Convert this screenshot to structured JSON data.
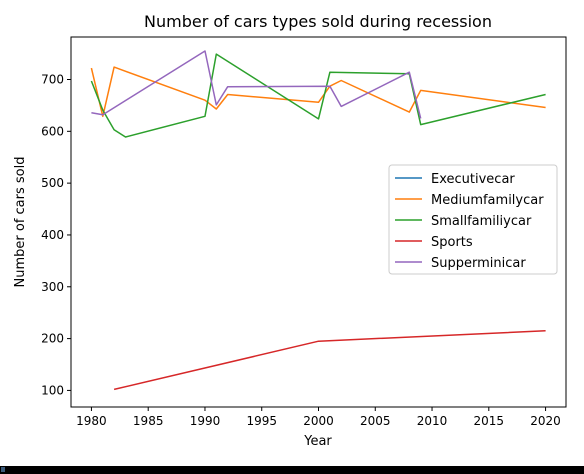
{
  "chart_data": {
    "type": "line",
    "title": "Number of cars types sold during recession",
    "xlabel": "Year",
    "ylabel": "Number of cars sold",
    "xlim": [
      1978.2,
      2021.8
    ],
    "ylim": [
      68,
      782
    ],
    "xticks": [
      1980,
      1985,
      1990,
      1995,
      2000,
      2005,
      2010,
      2015,
      2020
    ],
    "yticks": [
      100,
      200,
      300,
      400,
      500,
      600,
      700
    ],
    "grid": false,
    "legend_position": "center-right",
    "series": [
      {
        "name": "Executivecar",
        "color": "#1f77b4",
        "x": [],
        "y": []
      },
      {
        "name": "Mediumfamilycar",
        "color": "#ff7f0e",
        "x": [
          1980,
          1981,
          1982,
          1990,
          1991,
          1992,
          2000,
          2001,
          2002,
          2008,
          2009,
          2020
        ],
        "y": [
          722,
          629,
          724,
          660,
          643,
          671,
          656,
          687,
          698,
          637,
          679,
          646
        ]
      },
      {
        "name": "Smallfamiliycar",
        "color": "#2ca02c",
        "x": [
          1980,
          1981,
          1982,
          1983,
          1990,
          1991,
          2000,
          2001,
          2008,
          2009,
          2020
        ],
        "y": [
          697,
          641,
          603,
          589,
          629,
          749,
          624,
          714,
          711,
          613,
          671
        ]
      },
      {
        "name": "Sports",
        "color": "#d62728",
        "x": [
          1982,
          2000,
          2020
        ],
        "y": [
          102,
          195,
          215
        ]
      },
      {
        "name": "Supperminicar",
        "color": "#9467bd",
        "x": [
          1980,
          1981,
          1990,
          1991,
          1992,
          2001,
          2002,
          2008,
          2009
        ],
        "y": [
          636,
          632,
          755,
          651,
          686,
          687,
          648,
          714,
          625
        ]
      }
    ]
  }
}
